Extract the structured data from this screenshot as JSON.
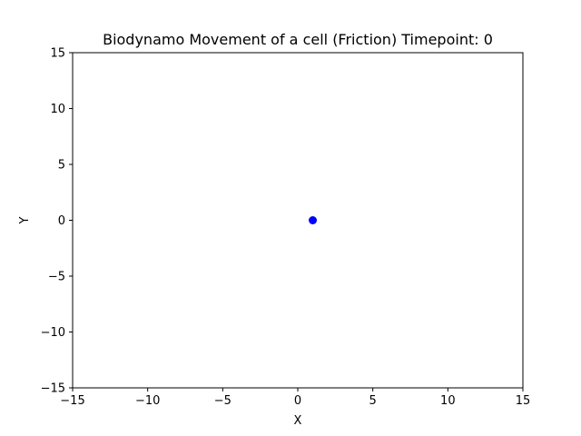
{
  "chart_data": {
    "type": "scatter",
    "title": "Biodynamo Movement of a cell (Friction) Timepoint: 0",
    "xlabel": "X",
    "ylabel": "Y",
    "xlim": [
      -15,
      15
    ],
    "ylim": [
      -15,
      15
    ],
    "xticks": [
      -15,
      -10,
      -5,
      0,
      5,
      10,
      15
    ],
    "yticks": [
      -15,
      -10,
      -5,
      0,
      5,
      10,
      15
    ],
    "xtick_labels": [
      "−15",
      "−10",
      "−5",
      "0",
      "5",
      "10",
      "15"
    ],
    "ytick_labels": [
      "−15",
      "−10",
      "−5",
      "0",
      "5",
      "10",
      "15"
    ],
    "grid": false,
    "series": [
      {
        "color": "#0000ff",
        "points": [
          {
            "x": 1.0,
            "y": 0.0
          }
        ]
      }
    ]
  }
}
